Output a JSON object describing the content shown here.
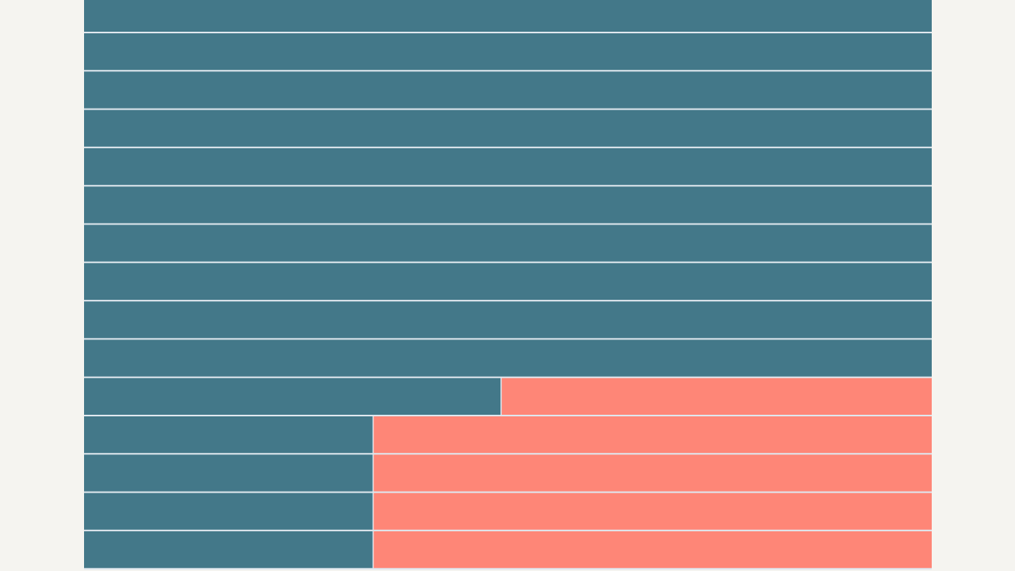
{
  "chart_data": {
    "type": "bar",
    "orientation": "horizontal",
    "stacked": true,
    "title": "",
    "xlabel": "",
    "ylabel": "",
    "grid": false,
    "legend": "none",
    "row_count": 15,
    "series": [
      {
        "values": [
          1,
          1,
          1,
          1,
          1,
          1,
          1,
          1,
          1,
          1,
          0.492,
          0.341,
          0.341,
          0.341,
          0.341
        ],
        "color": "#437889"
      },
      {
        "values": [
          0,
          0,
          0,
          0,
          0,
          0,
          0,
          0,
          0,
          0,
          0.508,
          0.659,
          0.659,
          0.659,
          0.659
        ],
        "color": "#fe8677"
      }
    ],
    "xlim": [
      0,
      1
    ]
  },
  "colors": {
    "background": "#f5f4f0",
    "row_divider": "#dfe7ee"
  }
}
